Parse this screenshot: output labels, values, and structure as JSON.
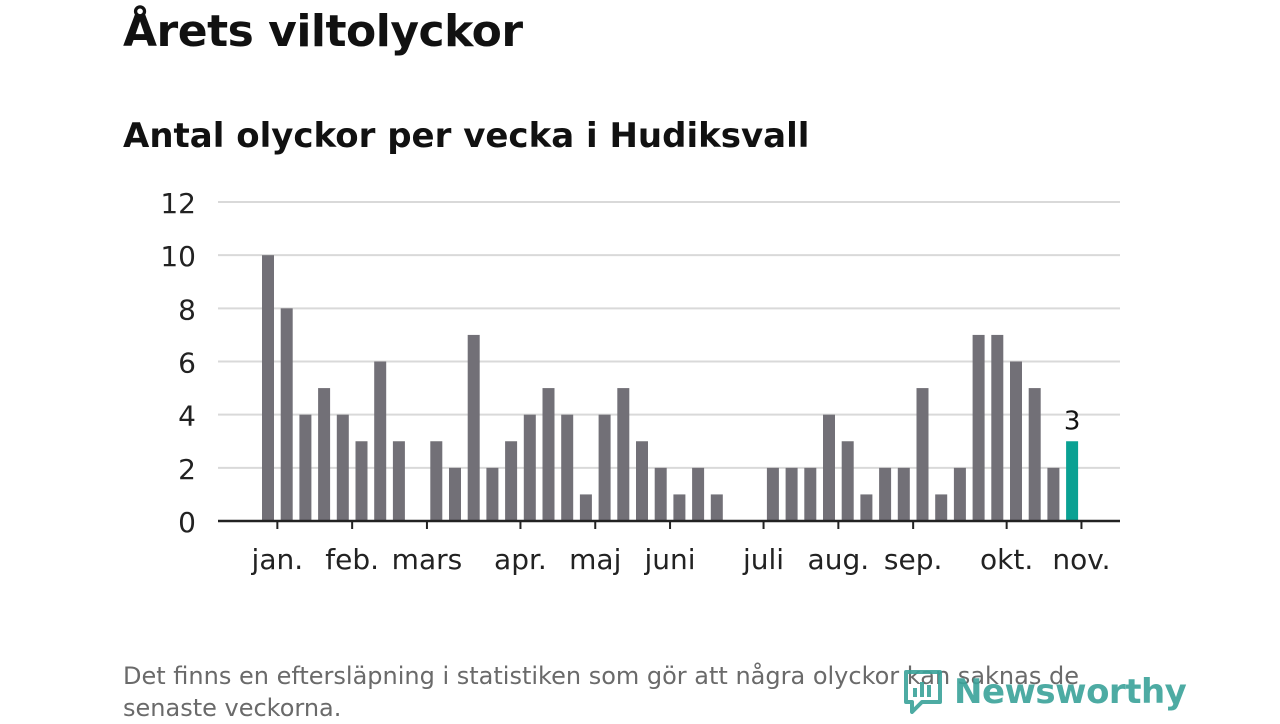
{
  "header": {
    "title": "Årets viltolyckor",
    "subtitle": "Antal olyckor per vecka i Hudiksvall"
  },
  "footnote": "Det finns en eftersläpning i statistiken som gör att några olyckor kan saknas de senaste veckorna.",
  "brand": {
    "name": "Newsworthy",
    "color": "#3aa39a"
  },
  "colors": {
    "bar": "#727077",
    "highlight": "#0aa193",
    "grid": "#d9d9d9",
    "axis": "#222222"
  },
  "chart_data": {
    "type": "bar",
    "title": "Antal olyckor per vecka i Hudiksvall",
    "xlabel": "",
    "ylabel": "",
    "ylim": [
      0,
      12
    ],
    "yticks": [
      0,
      2,
      4,
      6,
      8,
      10,
      12
    ],
    "weeks": [
      1,
      2,
      3,
      4,
      5,
      6,
      7,
      8,
      9,
      10,
      11,
      12,
      13,
      14,
      15,
      16,
      17,
      18,
      19,
      20,
      21,
      22,
      23,
      24,
      25,
      26,
      27,
      28,
      29,
      30,
      31,
      32,
      33,
      34,
      35,
      36,
      37,
      38,
      39,
      40,
      41,
      42,
      43,
      44,
      45
    ],
    "values": [
      10,
      8,
      4,
      5,
      4,
      3,
      6,
      3,
      0,
      3,
      2,
      7,
      2,
      3,
      4,
      5,
      4,
      1,
      4,
      5,
      3,
      2,
      1,
      2,
      1,
      0,
      0,
      2,
      2,
      2,
      4,
      3,
      1,
      2,
      2,
      5,
      1,
      2,
      7,
      7,
      6,
      5,
      2,
      3,
      null
    ],
    "highlight_index": 43,
    "highlight_label": "3",
    "month_labels": [
      {
        "label": "jan.",
        "week": 1.5
      },
      {
        "label": "feb.",
        "week": 5.5
      },
      {
        "label": "mars",
        "week": 9.5
      },
      {
        "label": "apr.",
        "week": 14.5
      },
      {
        "label": "maj",
        "week": 18.5
      },
      {
        "label": "juni",
        "week": 22.5
      },
      {
        "label": "juli",
        "week": 27.5
      },
      {
        "label": "aug.",
        "week": 31.5
      },
      {
        "label": "sep.",
        "week": 35.5
      },
      {
        "label": "okt.",
        "week": 40.5
      },
      {
        "label": "nov.",
        "week": 44.5
      }
    ]
  }
}
